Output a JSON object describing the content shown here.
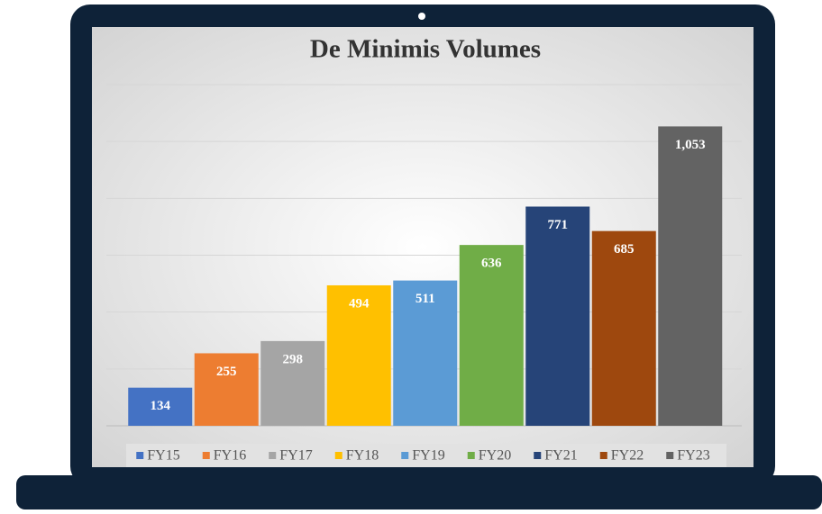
{
  "chart_data": {
    "type": "bar",
    "title": "De Minimis Volumes",
    "series": [
      {
        "name": "FY15",
        "color": "#4472c4",
        "values": [
          134
        ]
      },
      {
        "name": "FY16",
        "color": "#ed7d31",
        "values": [
          255
        ]
      },
      {
        "name": "FY17",
        "color": "#a5a5a5",
        "values": [
          298
        ]
      },
      {
        "name": "FY18",
        "color": "#ffc000",
        "values": [
          494
        ]
      },
      {
        "name": "FY19",
        "color": "#5b9bd5",
        "values": [
          511
        ]
      },
      {
        "name": "FY20",
        "color": "#70ad47",
        "values": [
          636
        ]
      },
      {
        "name": "FY21",
        "color": "#264478",
        "values": [
          771
        ]
      },
      {
        "name": "FY22",
        "color": "#9e480e",
        "values": [
          685
        ]
      },
      {
        "name": "FY23",
        "color": "#636363",
        "values": [
          1053
        ],
        "value_labels": [
          "1,053"
        ]
      }
    ],
    "ylim": [
      0,
      1200
    ],
    "yticks": [
      0,
      200,
      400,
      600,
      800,
      1000,
      1200
    ],
    "grid": true,
    "legend": "bottom"
  }
}
